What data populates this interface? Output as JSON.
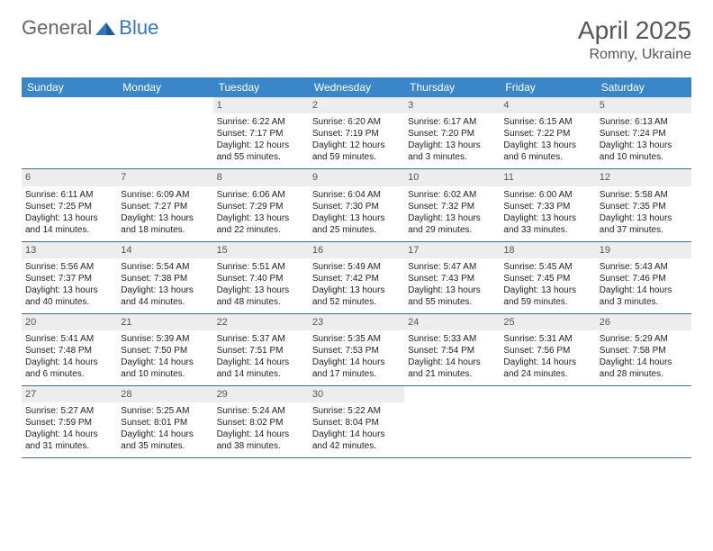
{
  "logo": {
    "general": "General",
    "blue": "Blue"
  },
  "title": "April 2025",
  "location": "Romny, Ukraine",
  "colors": {
    "header_bg": "#3b86c8",
    "header_text": "#ffffff",
    "daynum_bg": "#ededed",
    "daynum_text": "#555555",
    "border": "#4a6a8a",
    "logo_gray": "#666666",
    "logo_blue": "#2f78c3"
  },
  "weekdays": [
    "Sunday",
    "Monday",
    "Tuesday",
    "Wednesday",
    "Thursday",
    "Friday",
    "Saturday"
  ],
  "weeks": [
    [
      {
        "n": "",
        "sunrise": "",
        "sunset": "",
        "daylight": ""
      },
      {
        "n": "",
        "sunrise": "",
        "sunset": "",
        "daylight": ""
      },
      {
        "n": "1",
        "sunrise": "Sunrise: 6:22 AM",
        "sunset": "Sunset: 7:17 PM",
        "daylight": "Daylight: 12 hours and 55 minutes."
      },
      {
        "n": "2",
        "sunrise": "Sunrise: 6:20 AM",
        "sunset": "Sunset: 7:19 PM",
        "daylight": "Daylight: 12 hours and 59 minutes."
      },
      {
        "n": "3",
        "sunrise": "Sunrise: 6:17 AM",
        "sunset": "Sunset: 7:20 PM",
        "daylight": "Daylight: 13 hours and 3 minutes."
      },
      {
        "n": "4",
        "sunrise": "Sunrise: 6:15 AM",
        "sunset": "Sunset: 7:22 PM",
        "daylight": "Daylight: 13 hours and 6 minutes."
      },
      {
        "n": "5",
        "sunrise": "Sunrise: 6:13 AM",
        "sunset": "Sunset: 7:24 PM",
        "daylight": "Daylight: 13 hours and 10 minutes."
      }
    ],
    [
      {
        "n": "6",
        "sunrise": "Sunrise: 6:11 AM",
        "sunset": "Sunset: 7:25 PM",
        "daylight": "Daylight: 13 hours and 14 minutes."
      },
      {
        "n": "7",
        "sunrise": "Sunrise: 6:09 AM",
        "sunset": "Sunset: 7:27 PM",
        "daylight": "Daylight: 13 hours and 18 minutes."
      },
      {
        "n": "8",
        "sunrise": "Sunrise: 6:06 AM",
        "sunset": "Sunset: 7:29 PM",
        "daylight": "Daylight: 13 hours and 22 minutes."
      },
      {
        "n": "9",
        "sunrise": "Sunrise: 6:04 AM",
        "sunset": "Sunset: 7:30 PM",
        "daylight": "Daylight: 13 hours and 25 minutes."
      },
      {
        "n": "10",
        "sunrise": "Sunrise: 6:02 AM",
        "sunset": "Sunset: 7:32 PM",
        "daylight": "Daylight: 13 hours and 29 minutes."
      },
      {
        "n": "11",
        "sunrise": "Sunrise: 6:00 AM",
        "sunset": "Sunset: 7:33 PM",
        "daylight": "Daylight: 13 hours and 33 minutes."
      },
      {
        "n": "12",
        "sunrise": "Sunrise: 5:58 AM",
        "sunset": "Sunset: 7:35 PM",
        "daylight": "Daylight: 13 hours and 37 minutes."
      }
    ],
    [
      {
        "n": "13",
        "sunrise": "Sunrise: 5:56 AM",
        "sunset": "Sunset: 7:37 PM",
        "daylight": "Daylight: 13 hours and 40 minutes."
      },
      {
        "n": "14",
        "sunrise": "Sunrise: 5:54 AM",
        "sunset": "Sunset: 7:38 PM",
        "daylight": "Daylight: 13 hours and 44 minutes."
      },
      {
        "n": "15",
        "sunrise": "Sunrise: 5:51 AM",
        "sunset": "Sunset: 7:40 PM",
        "daylight": "Daylight: 13 hours and 48 minutes."
      },
      {
        "n": "16",
        "sunrise": "Sunrise: 5:49 AM",
        "sunset": "Sunset: 7:42 PM",
        "daylight": "Daylight: 13 hours and 52 minutes."
      },
      {
        "n": "17",
        "sunrise": "Sunrise: 5:47 AM",
        "sunset": "Sunset: 7:43 PM",
        "daylight": "Daylight: 13 hours and 55 minutes."
      },
      {
        "n": "18",
        "sunrise": "Sunrise: 5:45 AM",
        "sunset": "Sunset: 7:45 PM",
        "daylight": "Daylight: 13 hours and 59 minutes."
      },
      {
        "n": "19",
        "sunrise": "Sunrise: 5:43 AM",
        "sunset": "Sunset: 7:46 PM",
        "daylight": "Daylight: 14 hours and 3 minutes."
      }
    ],
    [
      {
        "n": "20",
        "sunrise": "Sunrise: 5:41 AM",
        "sunset": "Sunset: 7:48 PM",
        "daylight": "Daylight: 14 hours and 6 minutes."
      },
      {
        "n": "21",
        "sunrise": "Sunrise: 5:39 AM",
        "sunset": "Sunset: 7:50 PM",
        "daylight": "Daylight: 14 hours and 10 minutes."
      },
      {
        "n": "22",
        "sunrise": "Sunrise: 5:37 AM",
        "sunset": "Sunset: 7:51 PM",
        "daylight": "Daylight: 14 hours and 14 minutes."
      },
      {
        "n": "23",
        "sunrise": "Sunrise: 5:35 AM",
        "sunset": "Sunset: 7:53 PM",
        "daylight": "Daylight: 14 hours and 17 minutes."
      },
      {
        "n": "24",
        "sunrise": "Sunrise: 5:33 AM",
        "sunset": "Sunset: 7:54 PM",
        "daylight": "Daylight: 14 hours and 21 minutes."
      },
      {
        "n": "25",
        "sunrise": "Sunrise: 5:31 AM",
        "sunset": "Sunset: 7:56 PM",
        "daylight": "Daylight: 14 hours and 24 minutes."
      },
      {
        "n": "26",
        "sunrise": "Sunrise: 5:29 AM",
        "sunset": "Sunset: 7:58 PM",
        "daylight": "Daylight: 14 hours and 28 minutes."
      }
    ],
    [
      {
        "n": "27",
        "sunrise": "Sunrise: 5:27 AM",
        "sunset": "Sunset: 7:59 PM",
        "daylight": "Daylight: 14 hours and 31 minutes."
      },
      {
        "n": "28",
        "sunrise": "Sunrise: 5:25 AM",
        "sunset": "Sunset: 8:01 PM",
        "daylight": "Daylight: 14 hours and 35 minutes."
      },
      {
        "n": "29",
        "sunrise": "Sunrise: 5:24 AM",
        "sunset": "Sunset: 8:02 PM",
        "daylight": "Daylight: 14 hours and 38 minutes."
      },
      {
        "n": "30",
        "sunrise": "Sunrise: 5:22 AM",
        "sunset": "Sunset: 8:04 PM",
        "daylight": "Daylight: 14 hours and 42 minutes."
      },
      {
        "n": "",
        "sunrise": "",
        "sunset": "",
        "daylight": ""
      },
      {
        "n": "",
        "sunrise": "",
        "sunset": "",
        "daylight": ""
      },
      {
        "n": "",
        "sunrise": "",
        "sunset": "",
        "daylight": ""
      }
    ]
  ]
}
